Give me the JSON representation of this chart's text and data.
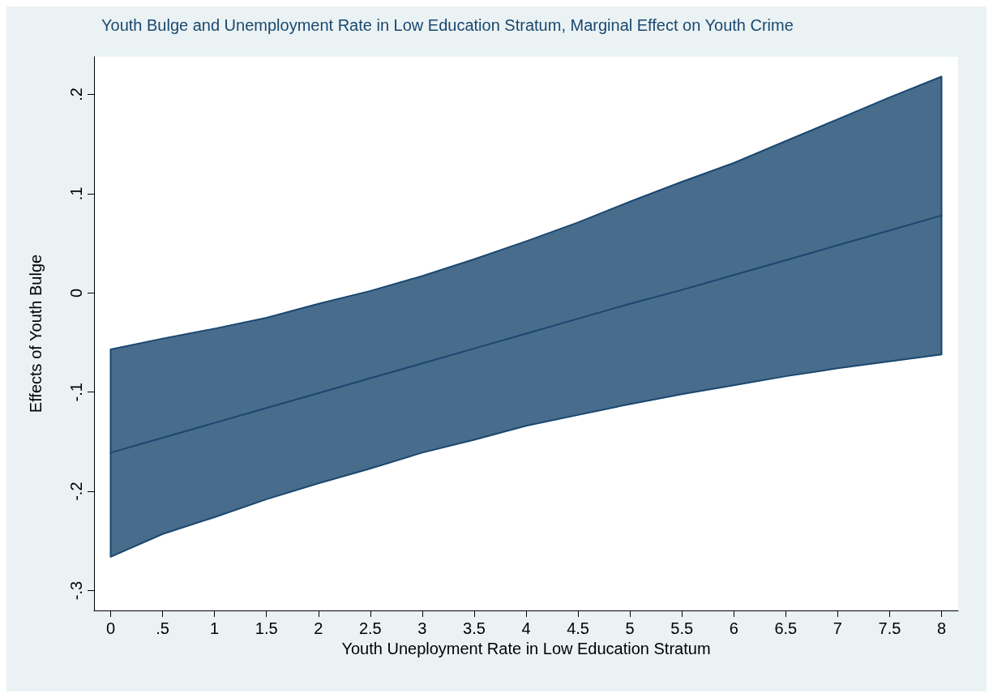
{
  "chart_data": {
    "type": "line",
    "title": "Youth Bulge and Unemployment Rate in Low Education Stratum, Marginal Effect on Youth Crime",
    "xlabel": "Youth Uneployment Rate in Low Education Stratum",
    "ylabel": "Effects of Youth Bulge",
    "x": [
      0,
      0.5,
      1,
      1.5,
      2,
      2.5,
      3,
      3.5,
      4,
      4.5,
      5,
      5.5,
      6,
      6.5,
      7,
      7.5,
      8
    ],
    "series": [
      {
        "color": "#1a476f",
        "values": [
          -0.161,
          -0.146,
          -0.131,
          -0.116,
          -0.101,
          -0.086,
          -0.071,
          -0.056,
          -0.041,
          -0.026,
          -0.011,
          0.003,
          0.018,
          0.033,
          0.048,
          0.063,
          0.078
        ],
        "lower": [
          -0.266,
          -0.243,
          -0.226,
          -0.208,
          -0.192,
          -0.177,
          -0.161,
          -0.148,
          -0.134,
          -0.123,
          -0.112,
          -0.102,
          -0.093,
          -0.084,
          -0.076,
          -0.069,
          -0.062
        ],
        "upper": [
          -0.057,
          -0.046,
          -0.036,
          -0.025,
          -0.011,
          0.002,
          0.017,
          0.034,
          0.052,
          0.071,
          0.092,
          0.112,
          0.131,
          0.153,
          0.175,
          0.197,
          0.218
        ]
      }
    ],
    "xlim": [
      -0.16,
      8.16
    ],
    "xticks": [
      0,
      {
        "value": 0.5,
        "label": ".5"
      },
      1,
      1.5,
      2,
      2.5,
      3,
      3.5,
      4,
      4.5,
      5,
      5.5,
      6,
      6.5,
      7,
      7.5,
      8
    ],
    "ylim": [
      -0.32,
      0.238
    ],
    "yticks": [
      {
        "value": -0.3,
        "label": "-.3"
      },
      {
        "value": -0.2,
        "label": "-.2"
      },
      {
        "value": -0.1,
        "label": "-.1"
      },
      0,
      {
        "value": 0.1,
        "label": ".1"
      },
      {
        "value": 0.2,
        "label": ".2"
      }
    ],
    "grid": false,
    "marker": "none",
    "line_style": "solid"
  }
}
